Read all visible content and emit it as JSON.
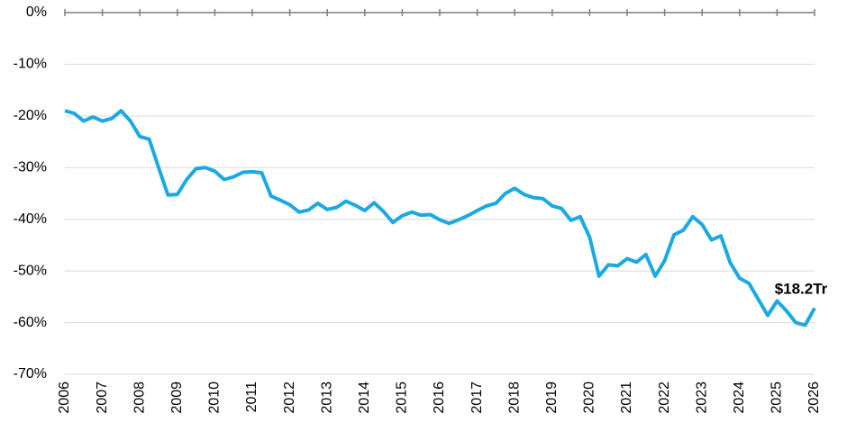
{
  "chart_data": {
    "type": "line",
    "annotation": "$18.2Tr",
    "x": [
      2006,
      2006.25,
      2006.5,
      2006.75,
      2007,
      2007.25,
      2007.5,
      2007.75,
      2008,
      2008.25,
      2008.5,
      2008.75,
      2009,
      2009.25,
      2009.5,
      2009.75,
      2010,
      2010.25,
      2010.5,
      2010.75,
      2011,
      2011.25,
      2011.5,
      2011.75,
      2012,
      2012.25,
      2012.5,
      2012.75,
      2013,
      2013.25,
      2013.5,
      2013.75,
      2014,
      2014.25,
      2014.5,
      2014.75,
      2015,
      2015.25,
      2015.5,
      2015.75,
      2016,
      2016.25,
      2016.5,
      2016.75,
      2017,
      2017.25,
      2017.5,
      2017.75,
      2018,
      2018.25,
      2018.5,
      2018.75,
      2019,
      2019.25,
      2019.5,
      2019.75,
      2020,
      2020.25,
      2020.5,
      2020.75,
      2021,
      2021.25,
      2021.5,
      2021.75,
      2022,
      2022.25,
      2022.5,
      2022.75,
      2023,
      2023.25,
      2023.5,
      2023.75,
      2024,
      2024.25,
      2024.5,
      2024.75,
      2025,
      2025.25,
      2025.5,
      2025.75,
      2026
    ],
    "series": [
      {
        "color": "#1ca9e1",
        "values": [
          -19,
          -19.5,
          -21,
          -20.2,
          -21,
          -20.5,
          -19,
          -21,
          -24,
          -24.5,
          -30,
          -35.3,
          -35.2,
          -32.3,
          -30.2,
          -30,
          -30.7,
          -32.3,
          -31.8,
          -30.9,
          -30.8,
          -31,
          -35.5,
          -36.3,
          -37.2,
          -38.6,
          -38.2,
          -36.9,
          -38.1,
          -37.7,
          -36.5,
          -37.3,
          -38.3,
          -36.8,
          -38.5,
          -40.6,
          -39.3,
          -38.6,
          -39.2,
          -39.1,
          -40.1,
          -40.8,
          -40.1,
          -39.3,
          -38.3,
          -37.4,
          -36.9,
          -35,
          -34,
          -35.2,
          -35.8,
          -36,
          -37.4,
          -37.9,
          -40.2,
          -39.5,
          -43.5,
          -51,
          -48.8,
          -49,
          -47.6,
          -48.3,
          -46.8,
          -51,
          -48,
          -43,
          -42.1,
          -39.5,
          -41,
          -44,
          -43.2,
          -48.4,
          -51.4,
          -52.4,
          -55.5,
          -58.6,
          -55.8,
          -57.7,
          -60,
          -60.5,
          -57.2
        ]
      }
    ],
    "xlim": [
      2006,
      2026
    ],
    "xticks": [
      2006,
      2007,
      2008,
      2009,
      2010,
      2011,
      2012,
      2013,
      2014,
      2015,
      2016,
      2017,
      2018,
      2019,
      2020,
      2021,
      2022,
      2023,
      2024,
      2025,
      2026
    ],
    "ylim": [
      -70,
      0
    ],
    "yticks": [
      {
        "value": 0,
        "label": "0%"
      },
      {
        "value": -10,
        "label": "-10%"
      },
      {
        "value": -20,
        "label": "-20%"
      },
      {
        "value": -30,
        "label": "-30%"
      },
      {
        "value": -40,
        "label": "-40%"
      },
      {
        "value": -50,
        "label": "-50%"
      },
      {
        "value": -60,
        "label": "-60%"
      },
      {
        "value": -70,
        "label": "-70%"
      }
    ],
    "grid": true
  }
}
